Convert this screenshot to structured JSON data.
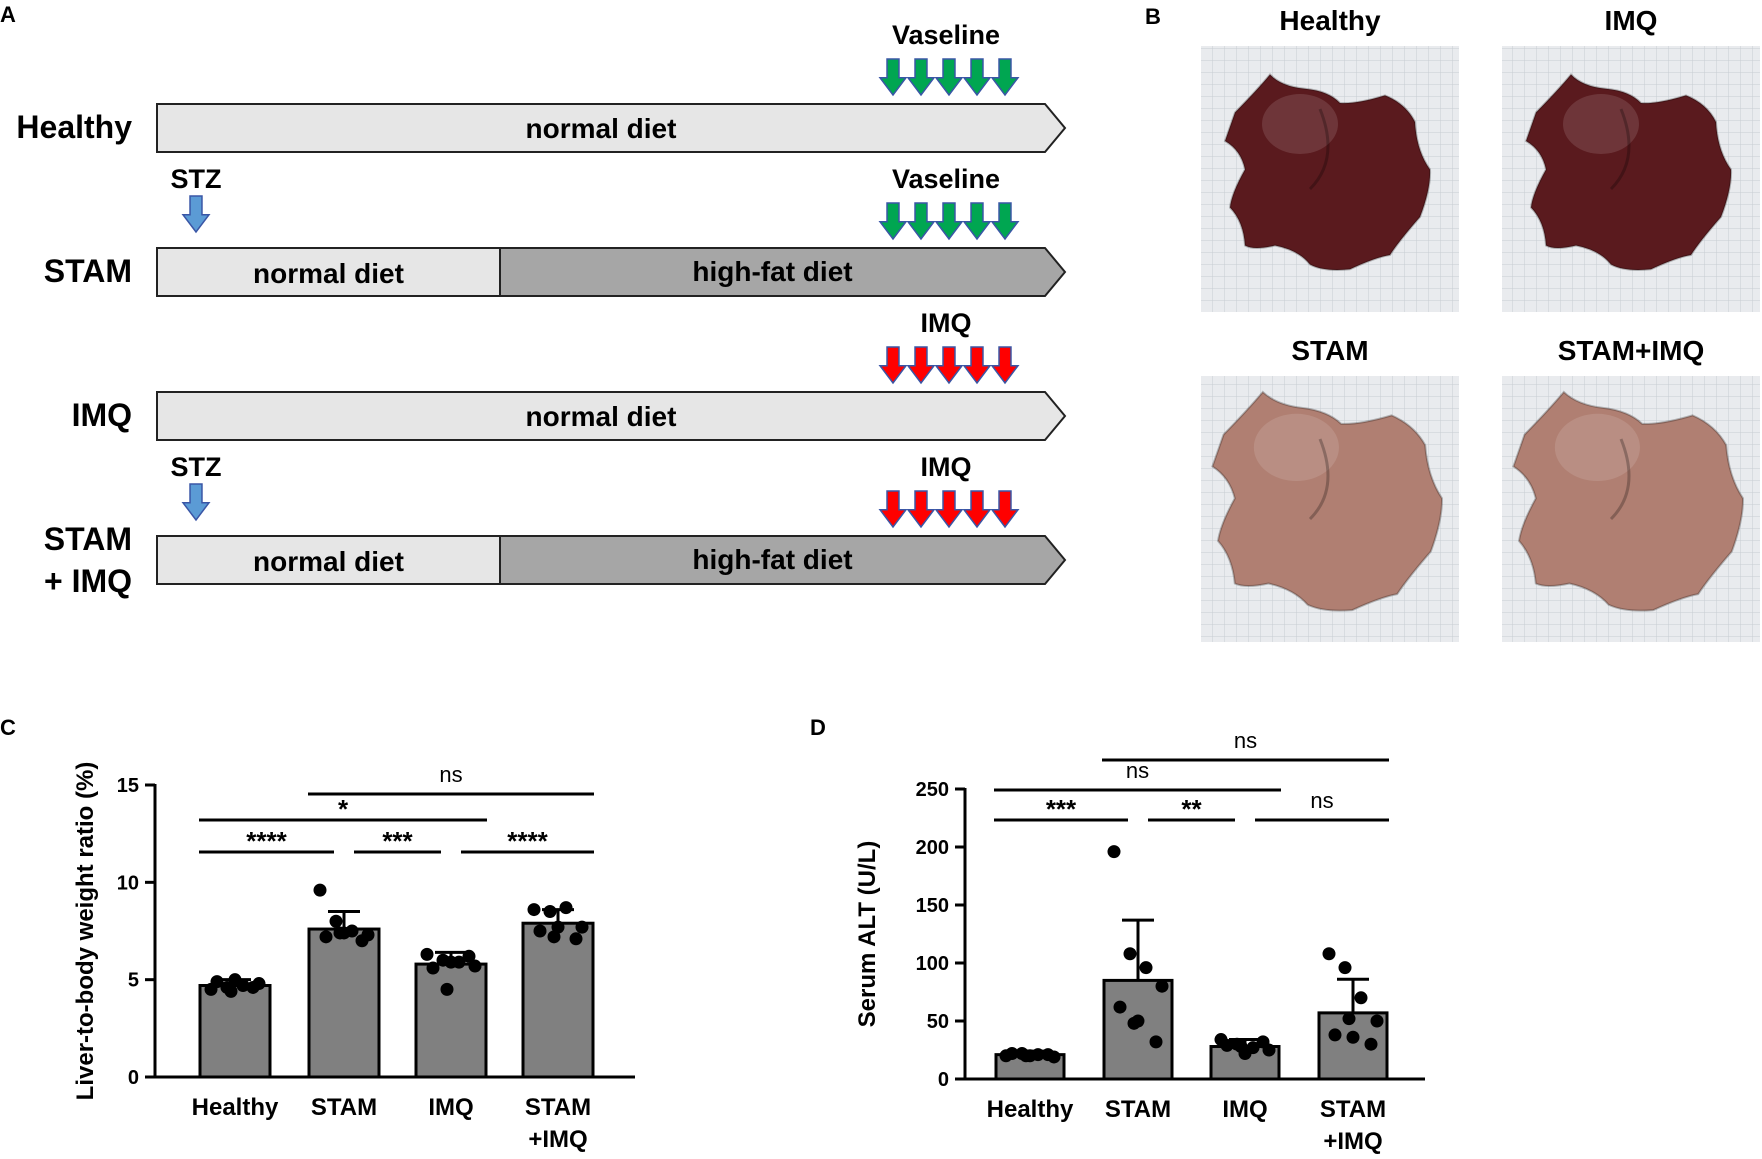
{
  "colors": {
    "normal_diet": "#e6e6e6",
    "high_fat_diet": "#a6a6a6",
    "bar_fill": "#808080",
    "vaseline_arrow": "#00a651",
    "imq_arrow": "#ff0000",
    "stz_arrow": "#5b9bd5",
    "arrow_outline": "#3a56a6",
    "photo_grid": "#c8ccd2",
    "photo_bg": "#e9ebee",
    "liver_dark": "#5a1a1e",
    "liver_light": "#b07f72"
  },
  "panel_a": {
    "letter": "A",
    "rows": [
      {
        "label_lines": [
          "Healthy"
        ],
        "stz_label": "",
        "treatment_label": "Vaseline",
        "treatment": "vaseline",
        "segments": [
          {
            "label": "normal diet",
            "kind": "normal"
          }
        ]
      },
      {
        "label_lines": [
          "STAM"
        ],
        "stz_label": "STZ",
        "treatment_label": "Vaseline",
        "treatment": "vaseline",
        "segments": [
          {
            "label": "normal diet",
            "kind": "normal"
          },
          {
            "label": "high-fat diet",
            "kind": "hfd"
          }
        ]
      },
      {
        "label_lines": [
          "IMQ"
        ],
        "stz_label": "",
        "treatment_label": "IMQ",
        "treatment": "imq",
        "segments": [
          {
            "label": "normal diet",
            "kind": "normal"
          }
        ]
      },
      {
        "label_lines": [
          "STAM",
          "+ IMQ"
        ],
        "stz_label": "STZ",
        "treatment_label": "IMQ",
        "treatment": "imq",
        "segments": [
          {
            "label": "normal diet",
            "kind": "normal"
          },
          {
            "label": "high-fat diet",
            "kind": "hfd"
          }
        ]
      }
    ]
  },
  "panel_b": {
    "letter": "B",
    "photos": [
      {
        "title": "Healthy",
        "tone": "dark"
      },
      {
        "title": "IMQ",
        "tone": "dark"
      },
      {
        "title": "STAM",
        "tone": "light"
      },
      {
        "title": "STAM+IMQ",
        "tone": "light"
      }
    ]
  },
  "chart_data": [
    {
      "panel": "C",
      "type": "bar",
      "title": "",
      "xlabel": "",
      "ylabel": "Liver-to-body weight ratio (%)",
      "ylim": [
        0,
        15
      ],
      "yticks": [
        0,
        5,
        10,
        15
      ],
      "categories": [
        [
          "Healthy"
        ],
        [
          "STAM"
        ],
        [
          "IMQ"
        ],
        [
          "STAM",
          "+IMQ"
        ]
      ],
      "values": [
        4.7,
        7.6,
        5.8,
        7.9
      ],
      "errors": [
        0.3,
        0.9,
        0.6,
        0.7
      ],
      "points": [
        [
          4.5,
          4.6,
          4.7,
          4.8,
          4.9,
          5.0,
          4.6,
          4.4
        ],
        [
          9.6,
          8.0,
          7.5,
          7.3,
          7.2,
          7.4,
          7.0,
          7.4
        ],
        [
          6.3,
          6.0,
          5.9,
          5.7,
          5.6,
          5.9,
          6.2,
          4.5
        ],
        [
          8.6,
          8.5,
          8.7,
          7.7,
          7.5,
          7.7,
          7.1,
          7.2
        ]
      ],
      "comparisons": [
        {
          "from": 1,
          "to": 3,
          "label": "ns",
          "level": 3
        },
        {
          "from": 0,
          "to": 2,
          "label": "*",
          "level": 2
        },
        {
          "from": 0,
          "to": 1,
          "label": "****",
          "level": 1
        },
        {
          "from": 1,
          "to": 2,
          "label": "***",
          "level": 1
        },
        {
          "from": 2,
          "to": 3,
          "label": "****",
          "level": 1
        }
      ]
    },
    {
      "panel": "D",
      "type": "bar",
      "title": "",
      "xlabel": "",
      "ylabel": "Serum ALT (U/L)",
      "ylim": [
        0,
        250
      ],
      "yticks": [
        0,
        50,
        100,
        150,
        200,
        250
      ],
      "categories": [
        [
          "Healthy"
        ],
        [
          "STAM"
        ],
        [
          "IMQ"
        ],
        [
          "STAM",
          "+IMQ"
        ]
      ],
      "values": [
        21,
        85,
        28,
        57
      ],
      "errors": [
        3,
        52,
        6,
        29
      ],
      "points": [
        [
          20,
          22,
          21,
          19,
          22,
          20,
          21,
          20
        ],
        [
          196,
          108,
          96,
          80,
          62,
          50,
          32,
          48
        ],
        [
          34,
          30,
          27,
          25,
          29,
          22,
          32,
          28
        ],
        [
          108,
          96,
          70,
          50,
          38,
          36,
          30,
          52
        ]
      ],
      "comparisons": [
        {
          "from": 1,
          "to": 3,
          "label": "ns",
          "level": 3
        },
        {
          "from": 0,
          "to": 2,
          "label": "ns",
          "level": 2
        },
        {
          "from": 0,
          "to": 1,
          "label": "***",
          "level": 1
        },
        {
          "from": 1,
          "to": 2,
          "label": "**",
          "level": 1
        },
        {
          "from": 2,
          "to": 3,
          "label": "ns",
          "level": 1
        }
      ]
    }
  ]
}
